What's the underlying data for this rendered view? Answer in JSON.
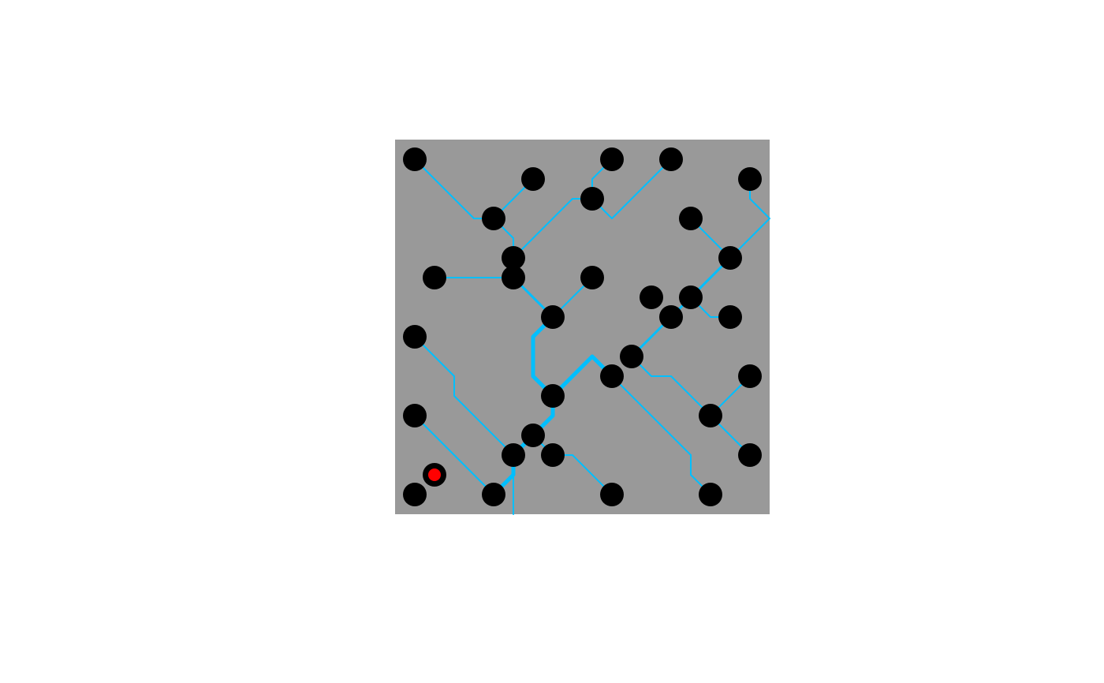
{
  "diagram": {
    "background_color": "#ffffff",
    "panel_color": "#999999",
    "node_color": "#000000",
    "edge_color": "#00bfff",
    "highlight_color": "#ff0000",
    "highlighted_node": "n29",
    "nodes": [
      {
        "id": "n1"
      },
      {
        "id": "n2"
      },
      {
        "id": "n3"
      },
      {
        "id": "n4"
      },
      {
        "id": "n5"
      },
      {
        "id": "n6"
      },
      {
        "id": "n7"
      },
      {
        "id": "n8"
      },
      {
        "id": "n9"
      },
      {
        "id": "n10"
      },
      {
        "id": "n11"
      },
      {
        "id": "n12"
      },
      {
        "id": "n13"
      },
      {
        "id": "n14"
      },
      {
        "id": "n15"
      },
      {
        "id": "n16"
      },
      {
        "id": "n17"
      },
      {
        "id": "n18"
      },
      {
        "id": "n19"
      },
      {
        "id": "n20"
      },
      {
        "id": "n21"
      },
      {
        "id": "n22"
      },
      {
        "id": "n23"
      },
      {
        "id": "n24"
      },
      {
        "id": "n25"
      },
      {
        "id": "n26"
      },
      {
        "id": "n27"
      },
      {
        "id": "n28"
      },
      {
        "id": "n29"
      },
      {
        "id": "n30"
      },
      {
        "id": "n31"
      },
      {
        "id": "n32"
      },
      {
        "id": "n33"
      },
      {
        "id": "n34"
      }
    ],
    "edges": [
      {
        "from": "n1",
        "to": "n7",
        "weight": "thin"
      },
      {
        "from": "n2",
        "to": "n7",
        "weight": "thin"
      },
      {
        "from": "n7",
        "to": "n9",
        "weight": "thin"
      },
      {
        "from": "n3",
        "to": "n6",
        "weight": "thin"
      },
      {
        "from": "n6",
        "to": "n9",
        "weight": "thin"
      },
      {
        "from": "n4",
        "to": "n6",
        "weight": "thin"
      },
      {
        "from": "n5",
        "to": "n10",
        "weight": "thin"
      },
      {
        "from": "n8",
        "to": "n12",
        "weight": "thin"
      },
      {
        "from": "n12",
        "to": "n15",
        "weight": "medium"
      },
      {
        "from": "n15",
        "to": "n17",
        "weight": "medium"
      },
      {
        "from": "n16",
        "to": "n17",
        "weight": "thin"
      },
      {
        "from": "n17",
        "to": "n19",
        "weight": "medium"
      },
      {
        "from": "n9",
        "to": "n10",
        "weight": "thin"
      },
      {
        "from": "n11",
        "to": "n10",
        "weight": "thin"
      },
      {
        "from": "n10",
        "to": "n14",
        "weight": "medium"
      },
      {
        "from": "n13",
        "to": "n14",
        "weight": "thin"
      },
      {
        "from": "n14",
        "to": "n20",
        "weight": "thick"
      },
      {
        "from": "n20",
        "to": "n19",
        "weight": "thick"
      },
      {
        "from": "n18",
        "to": "n26",
        "weight": "thin"
      },
      {
        "from": "n19",
        "to": "n21",
        "weight": "thin"
      },
      {
        "from": "n21",
        "to": "n23",
        "weight": "thin"
      },
      {
        "from": "n21",
        "to": "n30",
        "weight": "thin"
      },
      {
        "from": "n22",
        "to": "n23",
        "weight": "thin"
      },
      {
        "from": "n23",
        "to": "n24",
        "weight": "thin"
      },
      {
        "from": "n20",
        "to": "n25",
        "weight": "thick"
      },
      {
        "from": "n25",
        "to": "n26",
        "weight": "thick"
      },
      {
        "from": "n26",
        "to": "n31",
        "weight": "thick"
      },
      {
        "from": "n25",
        "to": "n33",
        "weight": "thin"
      },
      {
        "from": "n27",
        "to": "n28",
        "weight": "thin"
      },
      {
        "from": "n28",
        "to": "n31",
        "weight": "thin"
      },
      {
        "from": "n30",
        "to": "n28",
        "weight": "thin"
      },
      {
        "from": "n26",
        "to": "n32",
        "weight": "thin"
      },
      {
        "from": "n20",
        "to": "n34",
        "weight": "thin"
      }
    ]
  }
}
